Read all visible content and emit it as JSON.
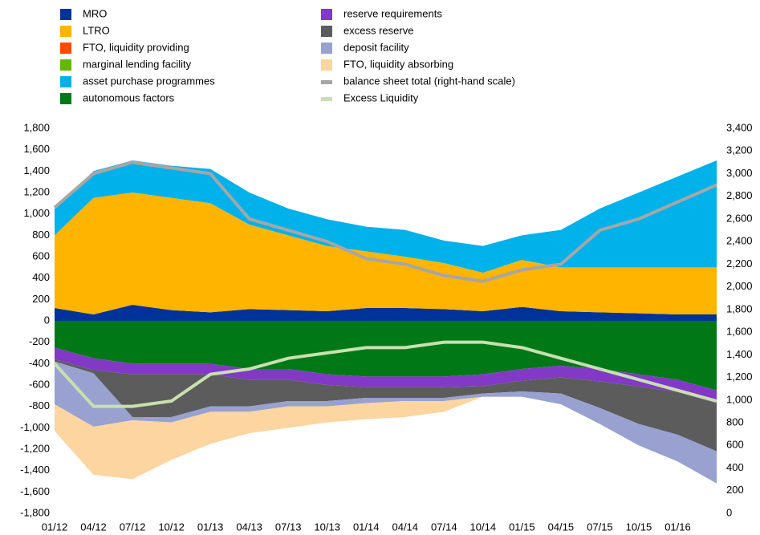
{
  "chart_data": {
    "type": "stacked-area",
    "categories": [
      "01/12",
      "04/12",
      "07/12",
      "10/12",
      "01/13",
      "04/13",
      "07/13",
      "10/13",
      "01/14",
      "04/14",
      "07/14",
      "10/14",
      "01/15",
      "04/15",
      "07/15",
      "10/15",
      "01/16",
      null
    ],
    "series": [
      {
        "name": "MRO",
        "color": "#003399",
        "stack": "pos",
        "values": [
          120,
          60,
          150,
          100,
          80,
          110,
          100,
          90,
          120,
          120,
          110,
          90,
          130,
          90,
          80,
          70,
          60,
          60
        ]
      },
      {
        "name": "LTRO",
        "color": "#ffb400",
        "stack": "pos",
        "values": [
          680,
          1090,
          1050,
          1050,
          1020,
          790,
          700,
          610,
          530,
          480,
          430,
          360,
          440,
          410,
          420,
          430,
          440,
          440
        ]
      },
      {
        "name": "FTO, liquidity providing",
        "color": "#ff4b00",
        "stack": "pos",
        "values": [
          0,
          0,
          0,
          0,
          0,
          0,
          0,
          0,
          0,
          0,
          0,
          0,
          0,
          0,
          0,
          0,
          0,
          0
        ]
      },
      {
        "name": "marginal lending facility",
        "color": "#65b800",
        "stack": "pos",
        "values": [
          0,
          0,
          0,
          0,
          0,
          0,
          0,
          0,
          0,
          0,
          0,
          0,
          0,
          0,
          0,
          0,
          0,
          0
        ]
      },
      {
        "name": "asset purchase programmes",
        "color": "#00b1ea",
        "stack": "pos",
        "values": [
          250,
          250,
          300,
          300,
          320,
          300,
          250,
          250,
          230,
          250,
          210,
          250,
          230,
          350,
          550,
          700,
          850,
          1000
        ]
      },
      {
        "name": "autonomous factors",
        "color": "#007816",
        "stack": "neg",
        "values": [
          -250,
          -350,
          -400,
          -400,
          -400,
          -450,
          -450,
          -500,
          -520,
          -520,
          -520,
          -500,
          -450,
          -420,
          -450,
          -500,
          -550,
          -650
        ]
      },
      {
        "name": "reserve requirements",
        "color": "#8139c6",
        "stack": "neg",
        "values": [
          -110,
          -110,
          -100,
          -100,
          -100,
          -100,
          -100,
          -100,
          -100,
          -100,
          -100,
          -110,
          -110,
          -110,
          -115,
          -115,
          -115,
          -120
        ]
      },
      {
        "name": "excess reserve",
        "color": "#5c5c5c",
        "stack": "neg",
        "values": [
          -20,
          -30,
          -400,
          -400,
          -300,
          -250,
          -200,
          -150,
          -100,
          -100,
          -100,
          -70,
          -100,
          -150,
          -250,
          -350,
          -400,
          -450
        ]
      },
      {
        "name": "deposit facility",
        "color": "#98a1d0",
        "stack": "neg",
        "values": [
          -400,
          -500,
          -30,
          -50,
          -50,
          -50,
          -50,
          -50,
          -50,
          -30,
          -30,
          -30,
          -50,
          -100,
          -150,
          -200,
          -250,
          -300
        ]
      },
      {
        "name": "FTO, liquidity absorbing",
        "color": "#fdd5a0",
        "stack": "neg",
        "values": [
          -250,
          -450,
          -550,
          -350,
          -300,
          -200,
          -200,
          -150,
          -150,
          -150,
          -100,
          0,
          0,
          0,
          0,
          0,
          0,
          0
        ]
      },
      {
        "name": "balance sheet total (right-hand scale)",
        "color": "#a6a6a6",
        "line": true,
        "axis": "y2",
        "values": [
          2700,
          3000,
          3100,
          3050,
          3000,
          2600,
          2500,
          2400,
          2250,
          2200,
          2100,
          2050,
          2150,
          2200,
          2500,
          2600,
          2750,
          2900
        ]
      },
      {
        "name": "Excess Liquidity",
        "color": "#c8e0b0",
        "line": true,
        "values": [
          -400,
          -800,
          -800,
          -750,
          -500,
          -450,
          -350,
          -300,
          -250,
          -250,
          -200,
          -200,
          -250,
          -350,
          -450,
          -550,
          -650,
          -750
        ]
      }
    ],
    "ylim": [
      -1800,
      1800
    ],
    "yticks": [
      {
        "value": -1800,
        "label": "-1,800"
      },
      {
        "value": -1600,
        "label": "-1,600"
      },
      {
        "value": -1400,
        "label": "-1,400"
      },
      {
        "value": -1200,
        "label": "-1,200"
      },
      {
        "value": -1000,
        "label": "-1,000"
      },
      -800,
      -600,
      -400,
      -200,
      0,
      200,
      400,
      600,
      800,
      {
        "value": 1000,
        "label": "1,000"
      },
      {
        "value": 1200,
        "label": "1,200"
      },
      {
        "value": 1400,
        "label": "1,400"
      },
      {
        "value": 1600,
        "label": "1,600"
      },
      {
        "value": 1800,
        "label": "1,800"
      }
    ],
    "y2lim": [
      0,
      3400
    ],
    "y2ticks": [
      0,
      200,
      400,
      600,
      800,
      {
        "value": 1000,
        "label": "1,000"
      },
      {
        "value": 1200,
        "label": "1,200"
      },
      {
        "value": 1400,
        "label": "1,400"
      },
      {
        "value": 1600,
        "label": "1,600"
      },
      {
        "value": 1800,
        "label": "1,800"
      },
      {
        "value": 2000,
        "label": "2,000"
      },
      {
        "value": 2200,
        "label": "2,200"
      },
      {
        "value": 2400,
        "label": "2,400"
      },
      {
        "value": 2600,
        "label": "2,600"
      },
      {
        "value": 2800,
        "label": "2,800"
      },
      {
        "value": 3000,
        "label": "3,000"
      },
      {
        "value": 3200,
        "label": "3,200"
      },
      {
        "value": 3400,
        "label": "3,400"
      }
    ]
  }
}
